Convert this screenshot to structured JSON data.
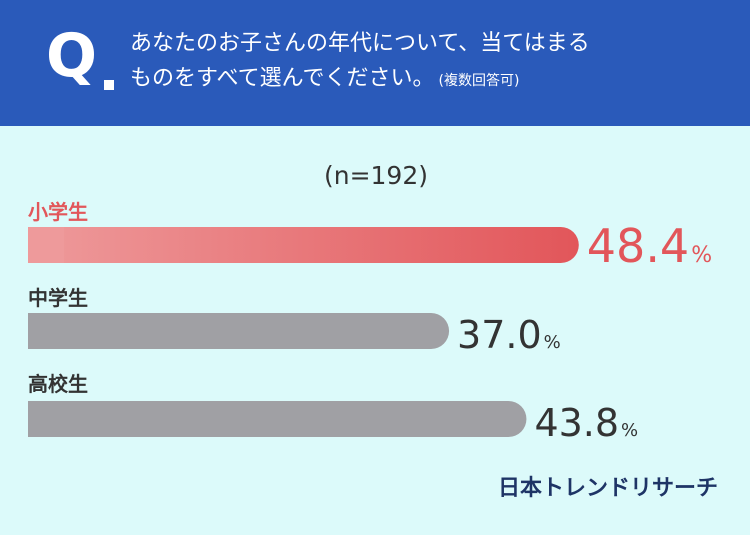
{
  "question": {
    "mark": "Q",
    "line1": "あなたのお子さんの年代について、当てはまる",
    "line2": "ものをすべて選んでください。",
    "note": "(複数回答可)"
  },
  "sample_size": "(n=192)",
  "logo_text": "日本トレンドリサーチ",
  "colors": {
    "header_bg": "#2a5aba",
    "background": "#dcfafa",
    "highlight": "#e2565a",
    "highlight_light": "#ee9a9b",
    "bar_gray": "#a0a0a4",
    "value_text": "#333333"
  },
  "chart_data": {
    "type": "bar",
    "orientation": "horizontal",
    "categories": [
      "小学生",
      "中学生",
      "高校生"
    ],
    "values": [
      48.4,
      37.0,
      43.8
    ],
    "value_labels": [
      "48.4",
      "37.0",
      "43.8"
    ],
    "unit": "%",
    "highlight_index": 0,
    "title": "",
    "xlabel": "",
    "ylabel": ""
  }
}
